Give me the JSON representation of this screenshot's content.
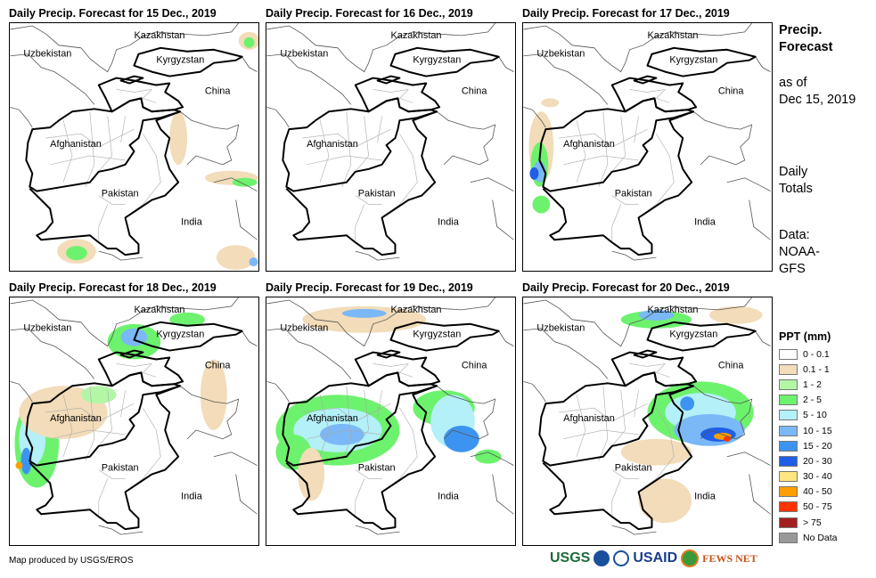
{
  "panels": [
    {
      "title": "Daily Precip. Forecast for 15 Dec., 2019"
    },
    {
      "title": "Daily Precip. Forecast for 16 Dec., 2019"
    },
    {
      "title": "Daily Precip. Forecast for 17 Dec., 2019"
    },
    {
      "title": "Daily Precip. Forecast for 18 Dec., 2019"
    },
    {
      "title": "Daily Precip. Forecast for 19 Dec., 2019"
    },
    {
      "title": "Daily Precip. Forecast for 20 Dec., 2019"
    }
  ],
  "map_labels": {
    "kazakhstan": "Kazakhstan",
    "uzbekistan": "Uzbekistan",
    "kyrgyzstan": "Kyrgyzstan",
    "china": "China",
    "afghanistan": "Afghanistan",
    "pakistan": "Pakistan",
    "india": "India"
  },
  "side": {
    "title1": "Precip.",
    "title2": "Forecast",
    "asof1": "as of",
    "asof2": "Dec 15, 2019",
    "totals1": "Daily",
    "totals2": "Totals",
    "data1": "Data:",
    "data2": "NOAA-",
    "data3": "GFS"
  },
  "legend": {
    "title": "PPT (mm)",
    "items": [
      {
        "label": "0 - 0.1",
        "color": "#ffffff"
      },
      {
        "label": "0.1 - 1",
        "color": "#f2dcb9"
      },
      {
        "label": "1 - 2",
        "color": "#b3f7a6"
      },
      {
        "label": "2 - 5",
        "color": "#6df26d"
      },
      {
        "label": "5 - 10",
        "color": "#b3f0f7"
      },
      {
        "label": "10 - 15",
        "color": "#7ab8f7"
      },
      {
        "label": "15 - 20",
        "color": "#3d94f0"
      },
      {
        "label": "20 - 30",
        "color": "#1f5ee6"
      },
      {
        "label": "30 - 40",
        "color": "#ffe680"
      },
      {
        "label": "40 - 50",
        "color": "#ff9e00"
      },
      {
        "label": "50 - 75",
        "color": "#ff3300"
      },
      {
        "label": "> 75",
        "color": "#a31f1f"
      },
      {
        "label": "No Data",
        "color": "#999999"
      }
    ]
  },
  "footer": {
    "credit": "Map produced by USGS/EROS",
    "logos": {
      "usgs": "USGS",
      "usaid": "USAID",
      "fews": "FEWS NET"
    }
  }
}
